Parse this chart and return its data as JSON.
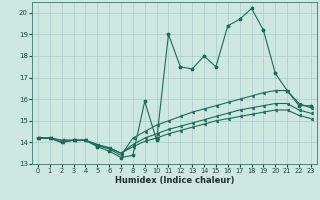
{
  "xlabel": "Humidex (Indice chaleur)",
  "xlim": [
    -0.5,
    23.5
  ],
  "ylim": [
    13,
    20.5
  ],
  "yticks": [
    13,
    14,
    15,
    16,
    17,
    18,
    19,
    20
  ],
  "xticks": [
    0,
    1,
    2,
    3,
    4,
    5,
    6,
    7,
    8,
    9,
    10,
    11,
    12,
    13,
    14,
    15,
    16,
    17,
    18,
    19,
    20,
    21,
    22,
    23
  ],
  "bg_color": "#cce8e0",
  "grid_color": "#aacccc",
  "line_color": "#1a6b5a",
  "line1_y": [
    14.2,
    14.2,
    14.0,
    14.1,
    14.1,
    13.8,
    13.6,
    13.3,
    13.4,
    15.9,
    14.1,
    19.0,
    17.5,
    17.4,
    18.0,
    17.5,
    19.4,
    19.7,
    20.2,
    19.2,
    17.2,
    16.4,
    15.7,
    15.7
  ],
  "line2_y": [
    14.2,
    14.2,
    14.0,
    14.1,
    14.1,
    13.85,
    13.7,
    13.4,
    14.2,
    14.5,
    14.8,
    15.0,
    15.2,
    15.4,
    15.55,
    15.7,
    15.85,
    16.0,
    16.15,
    16.3,
    16.4,
    16.4,
    15.8,
    15.6
  ],
  "line3_y": [
    14.2,
    14.2,
    14.1,
    14.1,
    14.1,
    13.9,
    13.75,
    13.5,
    13.9,
    14.2,
    14.4,
    14.6,
    14.75,
    14.9,
    15.05,
    15.2,
    15.35,
    15.5,
    15.6,
    15.7,
    15.8,
    15.8,
    15.5,
    15.35
  ],
  "line4_y": [
    14.2,
    14.2,
    14.1,
    14.1,
    14.1,
    13.9,
    13.75,
    13.5,
    13.8,
    14.05,
    14.2,
    14.4,
    14.55,
    14.7,
    14.85,
    15.0,
    15.1,
    15.2,
    15.3,
    15.4,
    15.5,
    15.5,
    15.25,
    15.1
  ]
}
